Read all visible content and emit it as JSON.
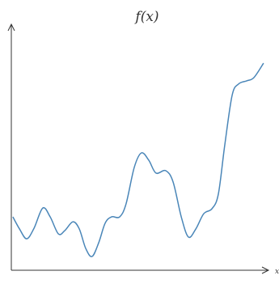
{
  "chart_data": {
    "type": "line",
    "title": "f(x)",
    "x_label": "x",
    "x": [
      0.6,
      3.2,
      6.0,
      8.9,
      12.3,
      15.2,
      18.4,
      20.9,
      24.1,
      26.6,
      29.1,
      31.6,
      34.2,
      36.7,
      39.2,
      42.4,
      44.9,
      48.1,
      50.9,
      53.8,
      56.6,
      60.4,
      63.3,
      66.5,
      69.3,
      72.2,
      75.3,
      78.5,
      81.0,
      83.5,
      86.4,
      88.9,
      92.1,
      94.9,
      98.7
    ],
    "series": [
      {
        "color": "#4a86b8",
        "values": [
          21.7,
          16.8,
          12.8,
          17.1,
          25.3,
          21.7,
          14.8,
          16.1,
          19.7,
          16.8,
          8.9,
          5.6,
          11.2,
          19.1,
          21.7,
          21.7,
          27.0,
          41.8,
          47.7,
          44.7,
          39.5,
          40.5,
          35.9,
          21.7,
          13.5,
          16.8,
          23.0,
          25.0,
          30.9,
          50.7,
          71.1,
          75.7,
          77.0,
          78.3,
          84.2
        ]
      }
    ],
    "xlim": [
      0,
      100
    ],
    "ylim": [
      0,
      100
    ]
  }
}
